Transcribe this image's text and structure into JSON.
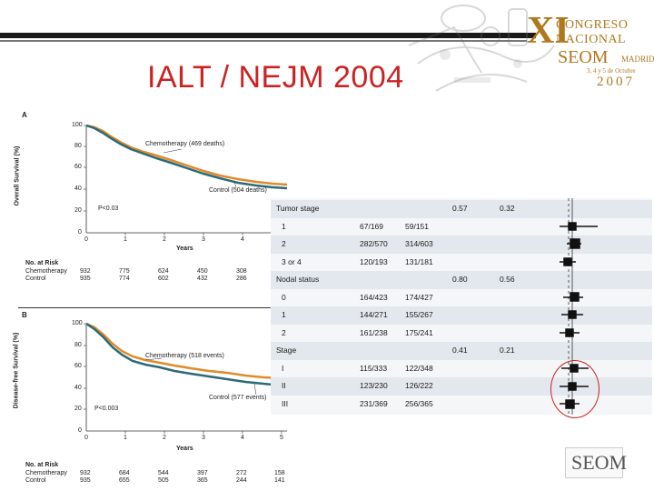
{
  "slide": {
    "title": "IALT / NEJM 2004"
  },
  "logo": {
    "roman": "XI",
    "line1": "CONGRESO",
    "line2": "NACIONAL",
    "org": "SEOM",
    "city": "MADRID",
    "dates": "3, 4 y 5 de Octubre",
    "year": "2007"
  },
  "panel_a": {
    "label": "A",
    "ylabel": "Overall Survival (%)",
    "xlabel": "Years",
    "series1_label": "Chemotherapy (469 deaths)",
    "series2_label": "Control (504 deaths)",
    "pvalue": "P<0.03",
    "yticks": [
      "100",
      "80",
      "60",
      "40",
      "20",
      "0"
    ],
    "xticks": [
      "0",
      "1",
      "2",
      "3",
      "4"
    ],
    "risk_header": "No. at Risk",
    "risk_rows": [
      {
        "name": "Chemotherapy",
        "values": [
          "932",
          "775",
          "624",
          "450",
          "308"
        ]
      },
      {
        "name": "Control",
        "values": [
          "935",
          "774",
          "602",
          "432",
          "286"
        ]
      }
    ]
  },
  "panel_b": {
    "label": "B",
    "ylabel": "Disease-free Survival (%)",
    "xlabel": "Years",
    "series1_label": "Chemotherapy (518 events)",
    "series2_label": "Control (577 events)",
    "pvalue": "P<0.003",
    "yticks": [
      "100",
      "80",
      "60",
      "40",
      "20",
      "0"
    ],
    "xticks": [
      "0",
      "1",
      "2",
      "3",
      "4",
      "5"
    ],
    "risk_header": "No. at Risk",
    "risk_rows": [
      {
        "name": "Chemotherapy",
        "values": [
          "932",
          "684",
          "544",
          "397",
          "272",
          "158"
        ]
      },
      {
        "name": "Control",
        "values": [
          "935",
          "655",
          "505",
          "365",
          "244",
          "141"
        ]
      }
    ]
  },
  "forest": {
    "rows": [
      {
        "label": "Tumor stage",
        "chemo": "",
        "control": "",
        "p1": "0.57",
        "p2": "0.32",
        "header": true
      },
      {
        "label": "1",
        "chemo": "67/169",
        "control": "59/151",
        "p1": "",
        "p2": ""
      },
      {
        "label": "2",
        "chemo": "282/570",
        "control": "314/603",
        "p1": "",
        "p2": ""
      },
      {
        "label": "3 or 4",
        "chemo": "120/193",
        "control": "131/181",
        "p1": "",
        "p2": ""
      },
      {
        "label": "Nodal status",
        "chemo": "",
        "control": "",
        "p1": "0.80",
        "p2": "0.56",
        "header": true
      },
      {
        "label": "0",
        "chemo": "164/423",
        "control": "174/427",
        "p1": "",
        "p2": ""
      },
      {
        "label": "1",
        "chemo": "144/271",
        "control": "155/267",
        "p1": "",
        "p2": ""
      },
      {
        "label": "2",
        "chemo": "161/238",
        "control": "175/241",
        "p1": "",
        "p2": ""
      },
      {
        "label": "Stage",
        "chemo": "",
        "control": "",
        "p1": "0.41",
        "p2": "0.21",
        "header": true
      },
      {
        "label": "I",
        "chemo": "115/333",
        "control": "122/348",
        "p1": "",
        "p2": ""
      },
      {
        "label": "II",
        "chemo": "123/230",
        "control": "126/222",
        "p1": "",
        "p2": ""
      },
      {
        "label": "III",
        "chemo": "231/369",
        "control": "256/365",
        "p1": "",
        "p2": ""
      }
    ]
  },
  "footer_logo": "SEOM",
  "colors": {
    "title_red": "#cc2222",
    "chemo_orange": "#e08a2a",
    "control_teal": "#2a6a7a",
    "logo_gold": "#b0781c"
  }
}
